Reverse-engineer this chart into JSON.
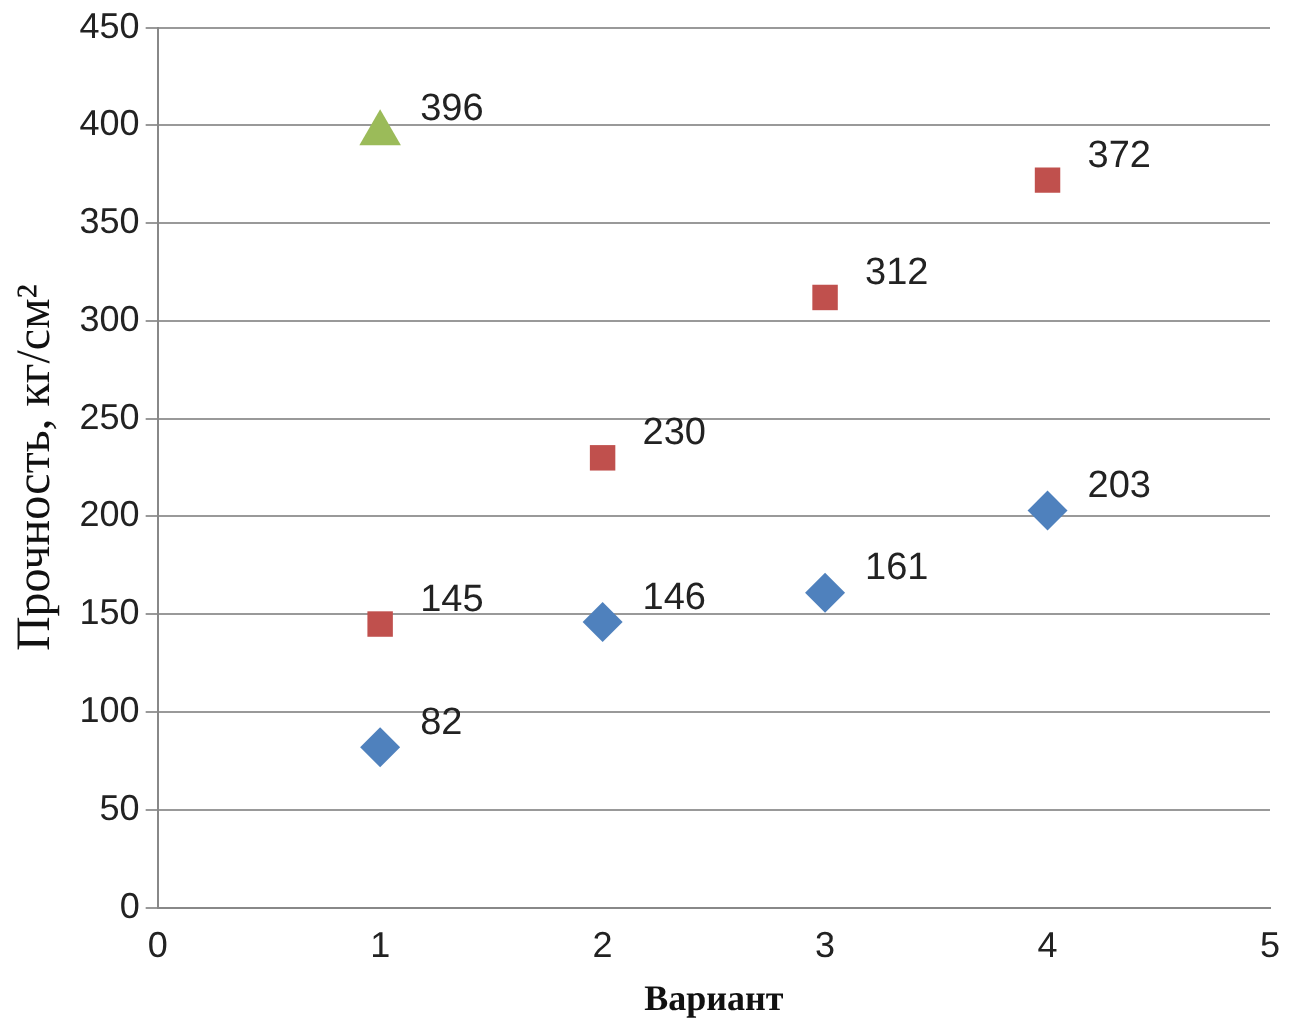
{
  "chart_data": {
    "type": "scatter",
    "xlabel": "Вариант",
    "ylabel": "Прочность, кг/см²",
    "xlim": [
      0,
      5
    ],
    "xticks": [
      0,
      1,
      2,
      3,
      4,
      5
    ],
    "ylim": [
      0,
      450
    ],
    "yticks": [
      0,
      50,
      100,
      150,
      200,
      250,
      300,
      350,
      400,
      450
    ],
    "grid": "y",
    "data_labels": true,
    "series": [
      {
        "color": "#4f81bd",
        "marker": "diamond",
        "x": [
          1,
          2,
          3,
          4
        ],
        "values": [
          82,
          146,
          161,
          203
        ]
      },
      {
        "color": "#c0504d",
        "marker": "square",
        "x": [
          1,
          2,
          3,
          4
        ],
        "values": [
          145,
          230,
          312,
          372
        ]
      },
      {
        "color": "#9bbb59",
        "marker": "triangle",
        "x": [
          1
        ],
        "values": [
          396
        ]
      }
    ]
  }
}
